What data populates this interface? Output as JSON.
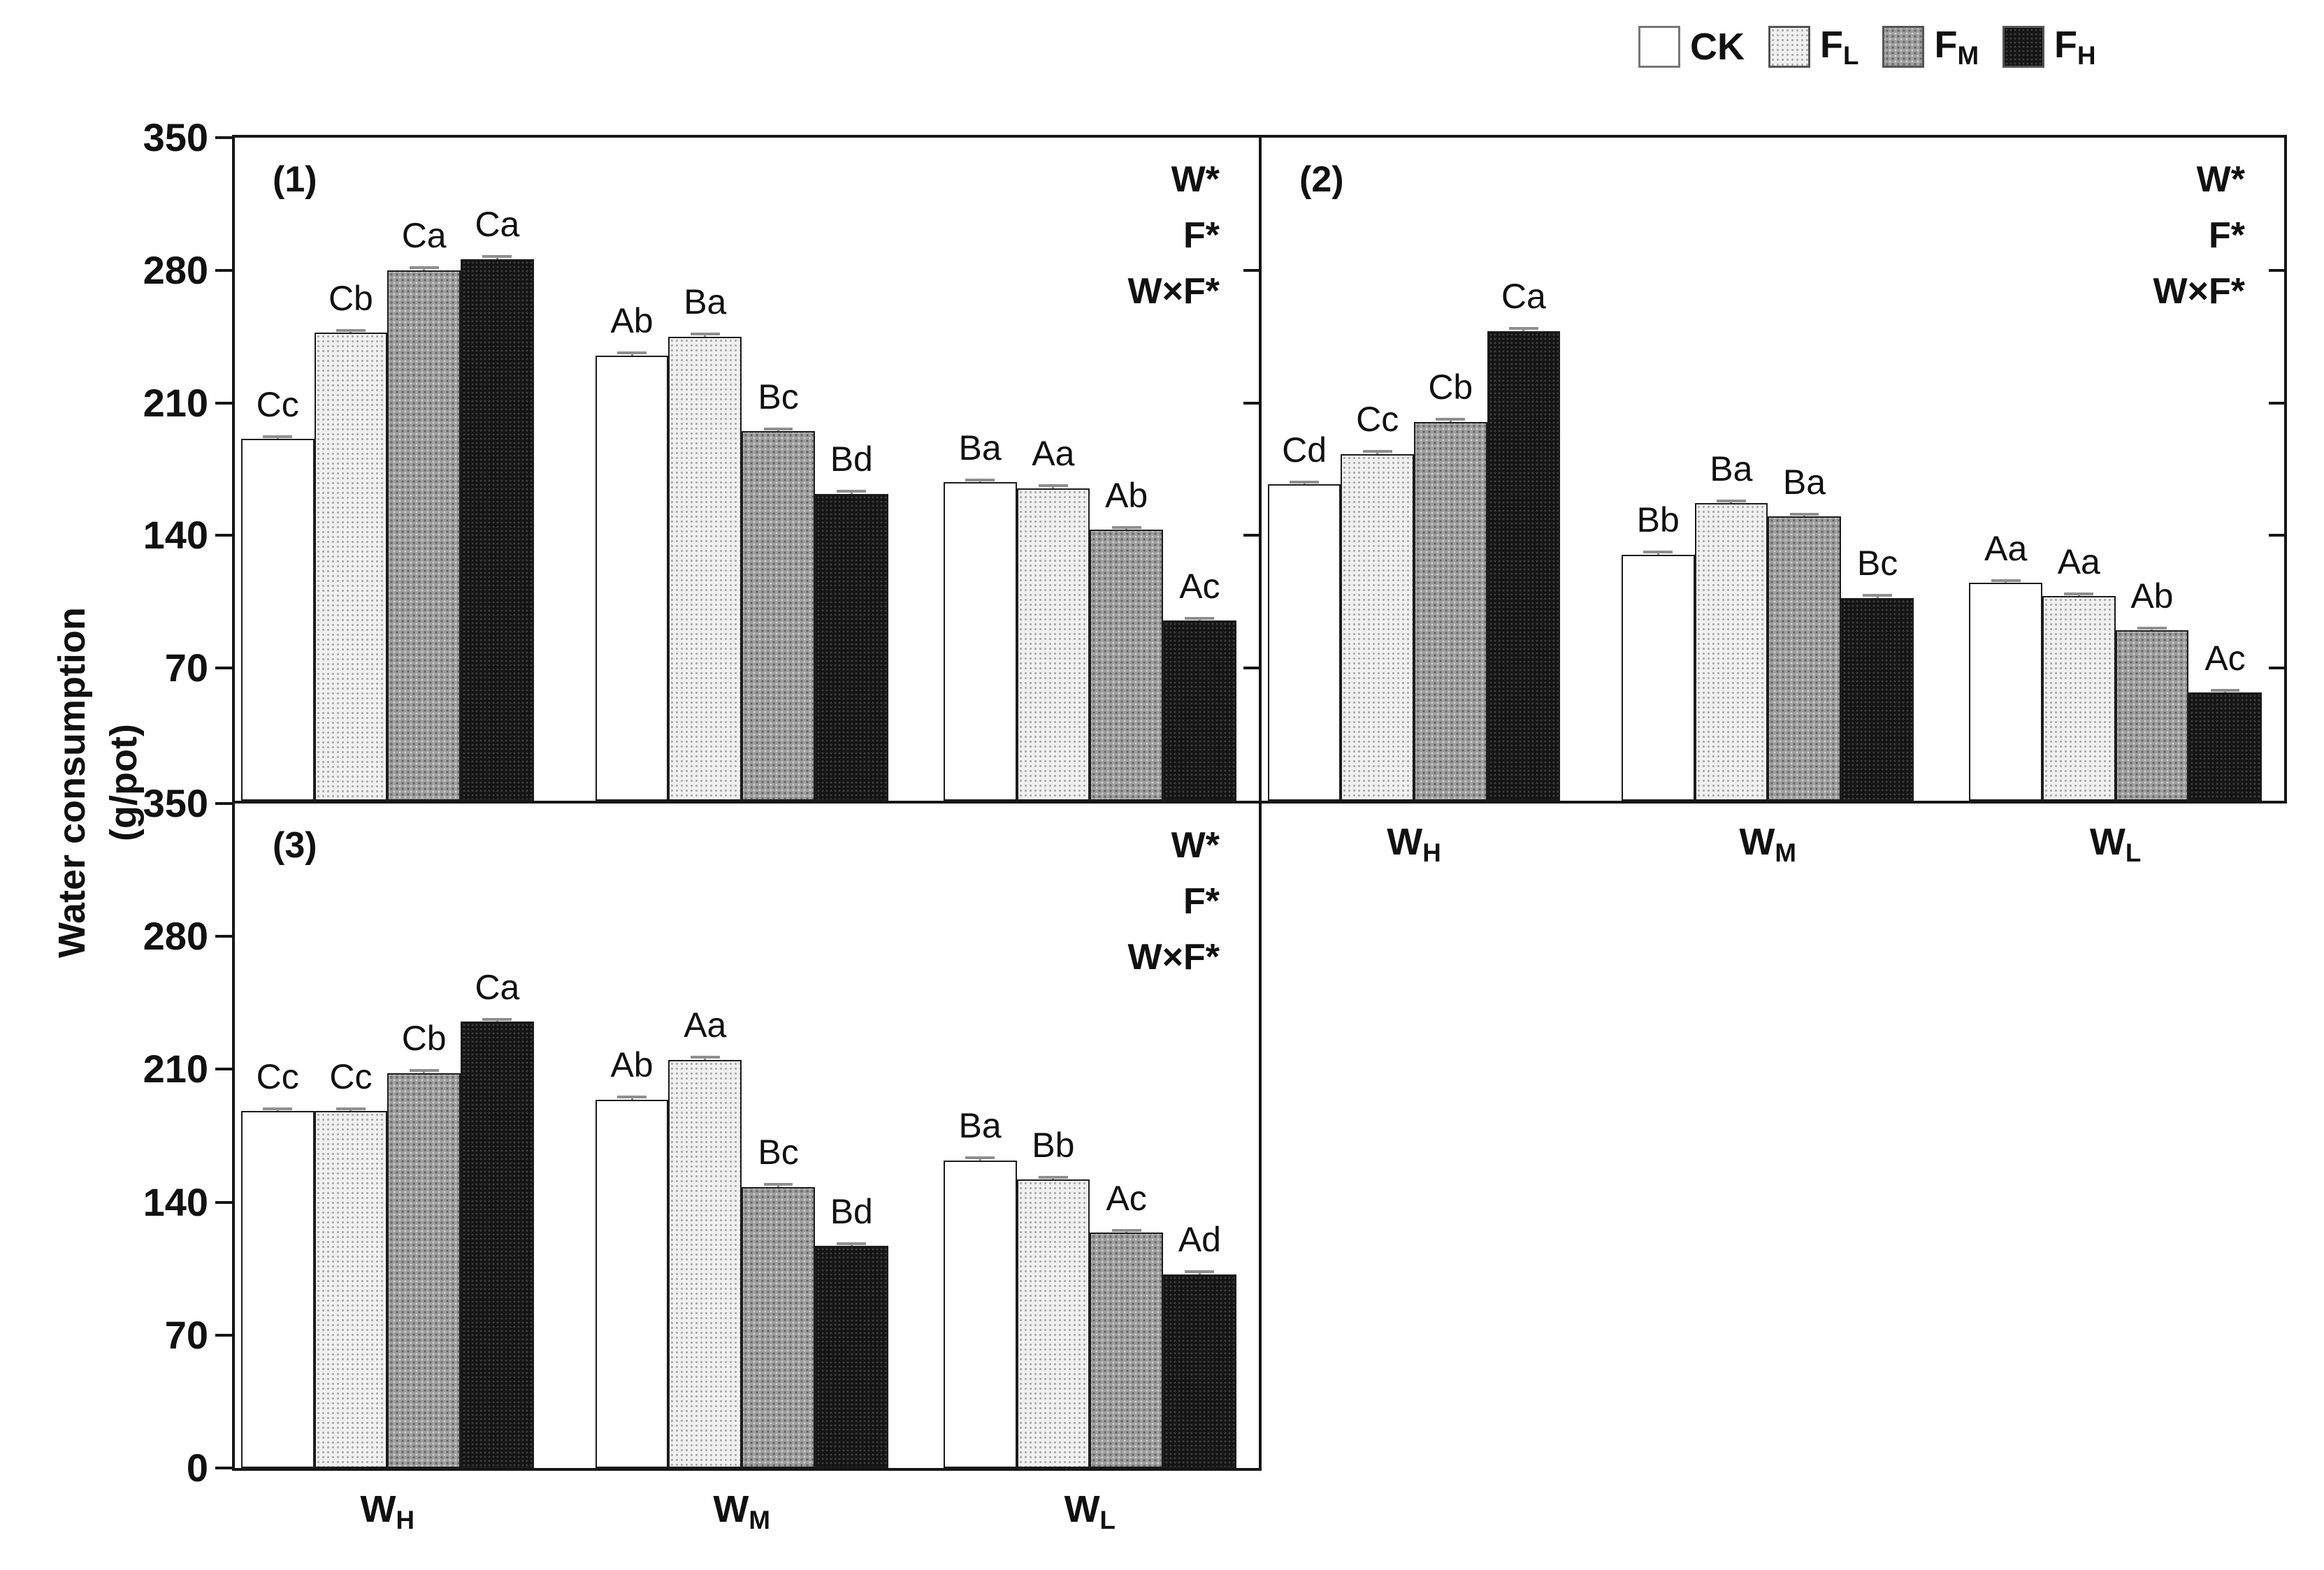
{
  "figure": {
    "y_axis_title_line1": "Water consumption",
    "y_axis_title_line2": "(g/pot)"
  },
  "legend": {
    "items": [
      {
        "id": "ck",
        "label_main": "CK",
        "label_sub": ""
      },
      {
        "id": "fl",
        "label_main": "F",
        "label_sub": "L"
      },
      {
        "id": "fm",
        "label_main": "F",
        "label_sub": "M"
      },
      {
        "id": "fh",
        "label_main": "F",
        "label_sub": "H"
      }
    ]
  },
  "chart_data": {
    "type": "bar",
    "title": "",
    "xlabel": "",
    "ylabel": "Water consumption (g/pot)",
    "ylim": [
      0,
      350
    ],
    "yticks": [
      0,
      70,
      140,
      210,
      280,
      350
    ],
    "grid": false,
    "legend_position": "top-right",
    "series_names": [
      "CK",
      "FL",
      "FM",
      "FH"
    ],
    "group_labels": [
      {
        "main": "W",
        "sub": "H"
      },
      {
        "main": "W",
        "sub": "M"
      },
      {
        "main": "W",
        "sub": "L"
      }
    ],
    "panels": [
      {
        "id": "(1)",
        "significance": [
          "W*",
          "F*",
          "W×F*"
        ],
        "groups": [
          {
            "name": "WH",
            "bars": [
              {
                "series": "CK",
                "value": 191,
                "err": 2,
                "letter": "Cc"
              },
              {
                "series": "FL",
                "value": 247,
                "err": 2,
                "letter": "Cb"
              },
              {
                "series": "FM",
                "value": 280,
                "err": 2,
                "letter": "Ca"
              },
              {
                "series": "FH",
                "value": 286,
                "err": 2,
                "letter": "Ca"
              }
            ]
          },
          {
            "name": "WM",
            "bars": [
              {
                "series": "CK",
                "value": 235,
                "err": 2,
                "letter": "Ab"
              },
              {
                "series": "FL",
                "value": 245,
                "err": 2,
                "letter": "Ba"
              },
              {
                "series": "FM",
                "value": 195,
                "err": 2,
                "letter": "Bc"
              },
              {
                "series": "FH",
                "value": 162,
                "err": 2,
                "letter": "Bd"
              }
            ]
          },
          {
            "name": "WL",
            "bars": [
              {
                "series": "CK",
                "value": 168,
                "err": 2,
                "letter": "Ba"
              },
              {
                "series": "FL",
                "value": 165,
                "err": 2,
                "letter": "Aa"
              },
              {
                "series": "FM",
                "value": 143,
                "err": 2,
                "letter": "Ab"
              },
              {
                "series": "FH",
                "value": 95,
                "err": 2,
                "letter": "Ac"
              }
            ]
          }
        ]
      },
      {
        "id": "(2)",
        "significance": [
          "W*",
          "F*",
          "W×F*"
        ],
        "groups": [
          {
            "name": "WH",
            "bars": [
              {
                "series": "CK",
                "value": 167,
                "err": 2,
                "letter": "Cd"
              },
              {
                "series": "FL",
                "value": 183,
                "err": 2,
                "letter": "Cc"
              },
              {
                "series": "FM",
                "value": 200,
                "err": 2,
                "letter": "Cb"
              },
              {
                "series": "FH",
                "value": 248,
                "err": 2,
                "letter": "Ca"
              }
            ]
          },
          {
            "name": "WM",
            "bars": [
              {
                "series": "CK",
                "value": 130,
                "err": 2,
                "letter": "Bb"
              },
              {
                "series": "FL",
                "value": 157,
                "err": 2,
                "letter": "Ba"
              },
              {
                "series": "FM",
                "value": 150,
                "err": 2,
                "letter": "Ba"
              },
              {
                "series": "FH",
                "value": 107,
                "err": 2,
                "letter": "Bc"
              }
            ]
          },
          {
            "name": "WL",
            "bars": [
              {
                "series": "CK",
                "value": 115,
                "err": 2,
                "letter": "Aa"
              },
              {
                "series": "FL",
                "value": 108,
                "err": 2,
                "letter": "Aa"
              },
              {
                "series": "FM",
                "value": 90,
                "err": 2,
                "letter": "Ab"
              },
              {
                "series": "FH",
                "value": 57,
                "err": 2,
                "letter": "Ac"
              }
            ]
          }
        ]
      },
      {
        "id": "(3)",
        "significance": [
          "W*",
          "F*",
          "W×F*"
        ],
        "groups": [
          {
            "name": "WH",
            "bars": [
              {
                "series": "CK",
                "value": 188,
                "err": 2,
                "letter": "Cc"
              },
              {
                "series": "FL",
                "value": 188,
                "err": 2,
                "letter": "Cc"
              },
              {
                "series": "FM",
                "value": 208,
                "err": 2,
                "letter": "Cb"
              },
              {
                "series": "FH",
                "value": 235,
                "err": 2,
                "letter": "Ca"
              }
            ]
          },
          {
            "name": "WM",
            "bars": [
              {
                "series": "CK",
                "value": 194,
                "err": 2,
                "letter": "Ab"
              },
              {
                "series": "FL",
                "value": 215,
                "err": 2,
                "letter": "Aa"
              },
              {
                "series": "FM",
                "value": 148,
                "err": 2,
                "letter": "Bc"
              },
              {
                "series": "FH",
                "value": 117,
                "err": 2,
                "letter": "Bd"
              }
            ]
          },
          {
            "name": "WL",
            "bars": [
              {
                "series": "CK",
                "value": 162,
                "err": 2,
                "letter": "Ba"
              },
              {
                "series": "FL",
                "value": 152,
                "err": 2,
                "letter": "Bb"
              },
              {
                "series": "FM",
                "value": 124,
                "err": 2,
                "letter": "Ac"
              },
              {
                "series": "FH",
                "value": 102,
                "err": 2,
                "letter": "Ad"
              }
            ]
          }
        ]
      }
    ]
  }
}
